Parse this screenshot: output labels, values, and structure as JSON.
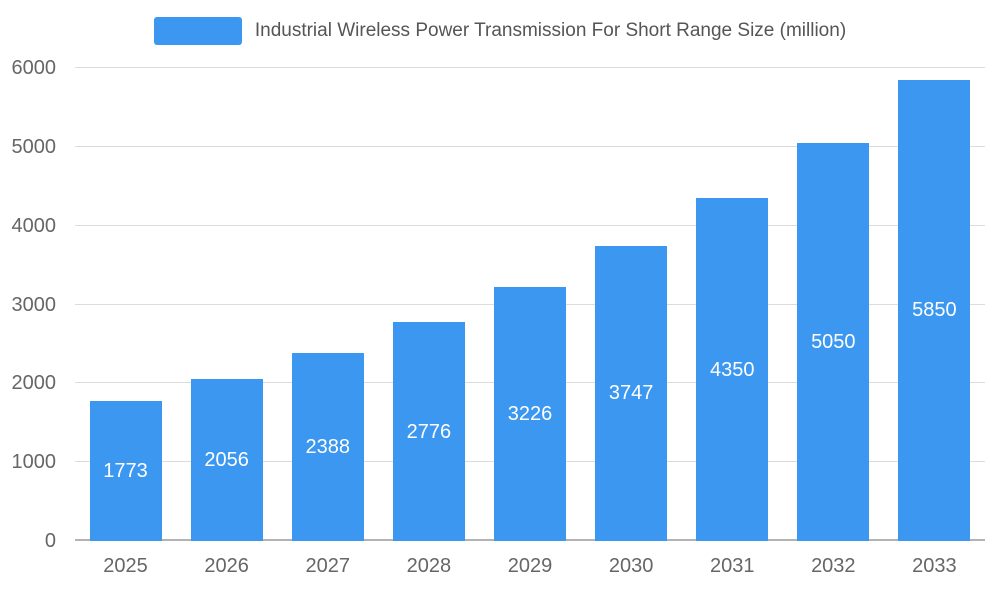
{
  "chart_data": {
    "type": "bar",
    "title": "Industrial Wireless Power Transmission For Short Range Size (million)",
    "categories": [
      "2025",
      "2026",
      "2027",
      "2028",
      "2029",
      "2030",
      "2031",
      "2032",
      "2033"
    ],
    "values": [
      1773,
      2056,
      2388,
      2776,
      3226,
      3747,
      4350,
      5050,
      5850
    ],
    "xlabel": "",
    "ylabel": "",
    "ylim": [
      0,
      6000
    ],
    "yticks": [
      0,
      1000,
      2000,
      3000,
      4000,
      5000,
      6000
    ],
    "grid": true,
    "legend_position": "top",
    "bar_color": "#3b97f0",
    "value_label_color": "#ffffff",
    "grid_color": "#dcdcdc",
    "axis_line_color": "#b3b3b3",
    "tick_label_color": "#666666",
    "title_color": "#555555"
  }
}
